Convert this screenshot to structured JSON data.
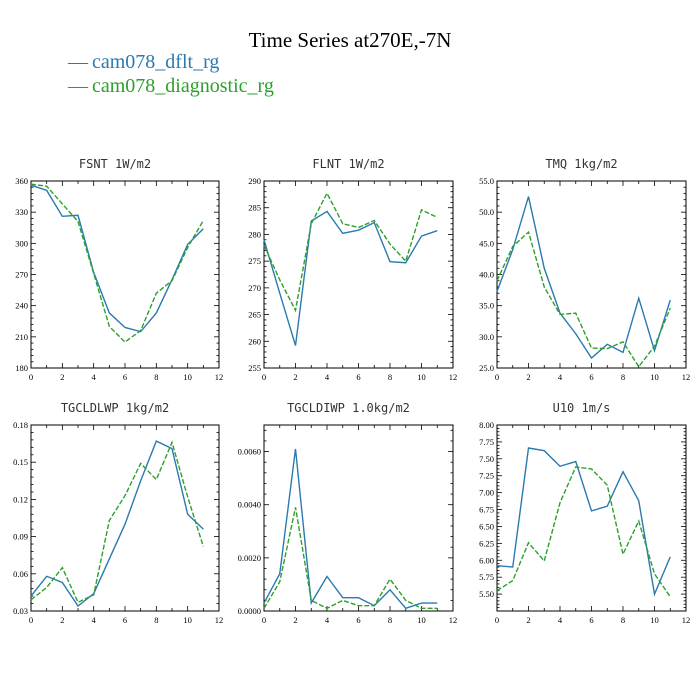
{
  "figure": {
    "title": "Time Series at270E,-7N",
    "legend": [
      {
        "name": "cam078_dflt_rg",
        "color": "#2a7ab0",
        "dash": "solid"
      },
      {
        "name": "cam078_diagnostic_rg",
        "color": "#2ca02c",
        "dash": "dashed"
      }
    ]
  },
  "chart_data": [
    {
      "type": "line",
      "title": "FSNT   1W/m2",
      "x": [
        0,
        1,
        2,
        3,
        4,
        5,
        6,
        7,
        8,
        9,
        10,
        11
      ],
      "xlim": [
        0,
        12
      ],
      "xticks": [
        0,
        2,
        4,
        6,
        8,
        10,
        12
      ],
      "xtick_labels": [
        "0",
        "2",
        "4",
        "6",
        "8",
        "10",
        "12"
      ],
      "ylim": [
        180,
        360
      ],
      "yticks": [
        180,
        210,
        240,
        270,
        300,
        330,
        360
      ],
      "ytick_labels": [
        "180",
        "210",
        "240",
        "270",
        "300",
        "330",
        "360"
      ],
      "series": [
        {
          "name": "cam078_dflt_rg",
          "values": [
            356,
            351,
            326,
            327,
            272,
            233,
            219,
            215,
            233,
            265,
            299,
            314
          ]
        },
        {
          "name": "cam078_diagnostic_rg",
          "values": [
            357,
            355,
            338,
            321,
            271,
            220,
            205,
            216,
            252,
            264,
            296,
            322
          ]
        }
      ]
    },
    {
      "type": "line",
      "title": "FLNT   1W/m2",
      "x": [
        0,
        1,
        2,
        3,
        4,
        5,
        6,
        7,
        8,
        9,
        10,
        11
      ],
      "xlim": [
        0,
        12
      ],
      "xticks": [
        0,
        2,
        4,
        6,
        8,
        10,
        12
      ],
      "xtick_labels": [
        "0",
        "2",
        "4",
        "6",
        "8",
        "10",
        "12"
      ],
      "ylim": [
        255,
        290
      ],
      "yticks": [
        255,
        260,
        265,
        270,
        275,
        280,
        285,
        290
      ],
      "ytick_labels": [
        "255",
        "260",
        "265",
        "270",
        "275",
        "280",
        "285",
        "290"
      ],
      "series": [
        {
          "name": "cam078_dflt_rg",
          "values": [
            279,
            269,
            259.2,
            282.5,
            284.3,
            280.2,
            280.8,
            282.2,
            274.9,
            274.7,
            279.7,
            280.7
          ]
        },
        {
          "name": "cam078_diagnostic_rg",
          "values": [
            278,
            271.5,
            265.8,
            282,
            287.7,
            282,
            281.3,
            282.6,
            278.2,
            275,
            284.6,
            283.2
          ]
        }
      ]
    },
    {
      "type": "line",
      "title": "TMQ   1kg/m2",
      "x": [
        0,
        1,
        2,
        3,
        4,
        5,
        6,
        7,
        8,
        9,
        10,
        11
      ],
      "xlim": [
        0,
        12
      ],
      "xticks": [
        0,
        2,
        4,
        6,
        8,
        10,
        12
      ],
      "xtick_labels": [
        "0",
        "2",
        "4",
        "6",
        "8",
        "10",
        "12"
      ],
      "ylim": [
        25,
        55
      ],
      "yticks": [
        25,
        30,
        35,
        40,
        45,
        50,
        55
      ],
      "ytick_labels": [
        "25.0",
        "30.0",
        "35.0",
        "40.0",
        "45.0",
        "50.0",
        "55.0"
      ],
      "series": [
        {
          "name": "cam078_dflt_rg",
          "values": [
            37.3,
            44,
            52.5,
            41,
            33.8,
            30.5,
            26.6,
            28.8,
            27.5,
            36.2,
            27.8,
            35.9
          ]
        },
        {
          "name": "cam078_diagnostic_rg",
          "values": [
            39,
            44.5,
            46.8,
            38,
            33.6,
            33.8,
            28.2,
            28.1,
            29.2,
            25.2,
            28.5,
            34.6
          ]
        }
      ]
    },
    {
      "type": "line",
      "title": "TGCLDLWP   1kg/m2",
      "x": [
        0,
        1,
        2,
        3,
        4,
        5,
        6,
        7,
        8,
        9,
        10,
        11
      ],
      "xlim": [
        0,
        12
      ],
      "xticks": [
        0,
        2,
        4,
        6,
        8,
        10,
        12
      ],
      "xtick_labels": [
        "0",
        "2",
        "4",
        "6",
        "8",
        "10",
        "12"
      ],
      "ylim": [
        0.03,
        0.18
      ],
      "yticks": [
        0.03,
        0.06,
        0.09,
        0.12,
        0.15,
        0.18
      ],
      "ytick_labels": [
        "0.03",
        "0.06",
        "0.09",
        "0.12",
        "0.15",
        "0.18"
      ],
      "series": [
        {
          "name": "cam078_dflt_rg",
          "values": [
            0.042,
            0.058,
            0.053,
            0.034,
            0.044,
            0.072,
            0.1,
            0.135,
            0.167,
            0.161,
            0.108,
            0.096
          ]
        },
        {
          "name": "cam078_diagnostic_rg",
          "values": [
            0.039,
            0.049,
            0.065,
            0.037,
            0.043,
            0.103,
            0.123,
            0.149,
            0.136,
            0.166,
            0.122,
            0.082
          ]
        }
      ]
    },
    {
      "type": "line",
      "title": "TGCLDIWP   1.0kg/m2",
      "x": [
        0,
        1,
        2,
        3,
        4,
        5,
        6,
        7,
        8,
        9,
        10,
        11
      ],
      "xlim": [
        0,
        12
      ],
      "xticks": [
        0,
        2,
        4,
        6,
        8,
        10,
        12
      ],
      "xtick_labels": [
        "0",
        "2",
        "4",
        "6",
        "8",
        "10",
        "12"
      ],
      "ylim": [
        0,
        0.007
      ],
      "yticks": [
        0,
        0.002,
        0.004,
        0.006
      ],
      "ytick_labels": [
        "0.0000",
        "0.0020",
        "0.0040",
        "0.0060"
      ],
      "series": [
        {
          "name": "cam078_dflt_rg",
          "values": [
            0.0003,
            0.0014,
            0.0061,
            0.0003,
            0.0013,
            0.0005,
            0.0005,
            0.0002,
            0.0008,
            0.0001,
            0.0003,
            0.0003
          ]
        },
        {
          "name": "cam078_diagnostic_rg",
          "values": [
            0.0001,
            0.0011,
            0.0039,
            0.0004,
            0.0001,
            0.0004,
            0.0002,
            0.0002,
            0.0012,
            0.0004,
            0.0001,
            0.0001
          ]
        }
      ]
    },
    {
      "type": "line",
      "title": "U10   1m/s",
      "x": [
        0,
        1,
        2,
        3,
        4,
        5,
        6,
        7,
        8,
        9,
        10,
        11
      ],
      "xlim": [
        0,
        12
      ],
      "xticks": [
        0,
        2,
        4,
        6,
        8,
        10,
        12
      ],
      "xtick_labels": [
        "0",
        "2",
        "4",
        "6",
        "8",
        "10",
        "12"
      ],
      "ylim": [
        5.25,
        8.0
      ],
      "yticks": [
        5.5,
        5.75,
        6.0,
        6.25,
        6.5,
        6.75,
        7.0,
        7.25,
        7.5,
        7.75,
        8.0
      ],
      "ytick_labels": [
        "5.50",
        "5.75",
        "6.00",
        "6.25",
        "6.50",
        "6.75",
        "7.00",
        "7.25",
        "7.50",
        "7.75",
        "8.00"
      ],
      "series": [
        {
          "name": "cam078_dflt_rg",
          "values": [
            5.92,
            5.9,
            7.66,
            7.62,
            7.39,
            7.46,
            6.73,
            6.8,
            7.31,
            6.88,
            5.5,
            6.05
          ]
        },
        {
          "name": "cam078_diagnostic_rg",
          "values": [
            5.55,
            5.7,
            6.26,
            5.99,
            6.85,
            7.38,
            7.35,
            7.11,
            6.09,
            6.58,
            5.8,
            5.46
          ]
        }
      ]
    }
  ]
}
